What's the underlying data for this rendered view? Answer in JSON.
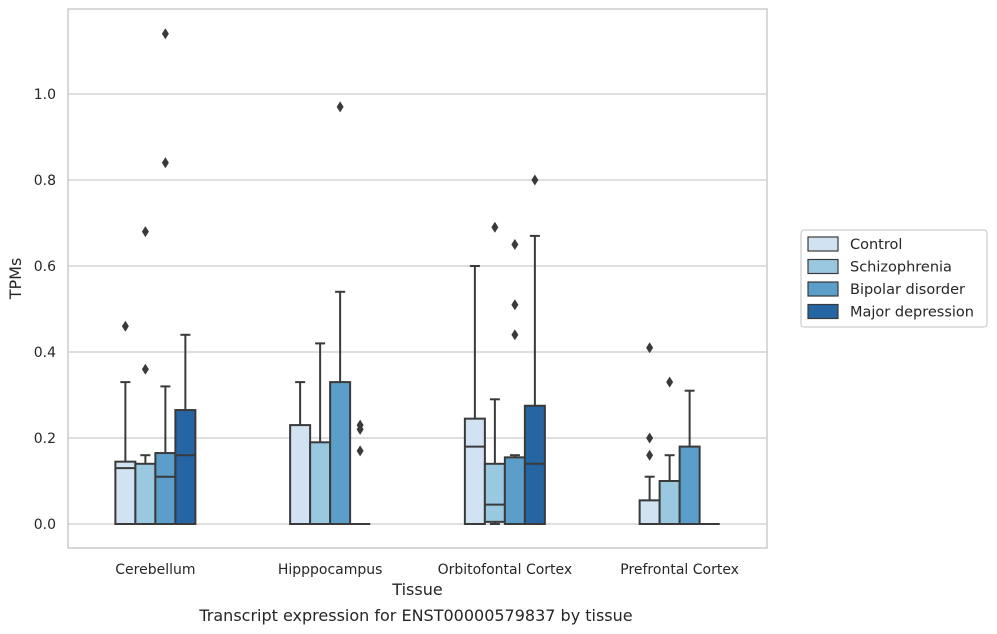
{
  "chart_data": {
    "type": "boxplot",
    "title": "",
    "xlabel": "Tissue",
    "ylabel": "TPMs",
    "caption": "Transcript expression for ENST00000579837 by tissue",
    "categories": [
      "Cerebellum",
      "Hipppocampus",
      "Orbitofontal Cortex",
      "Prefrontal Cortex"
    ],
    "ylim": [
      -0.055,
      1.2
    ],
    "yticks": [
      "0.0",
      "0.2",
      "0.4",
      "0.6",
      "0.8",
      "1.0"
    ],
    "grid": "horizontal",
    "legend_position": "right",
    "series": [
      {
        "name": "Control",
        "color": "#d1e2f2",
        "boxes": [
          {
            "q1": 0.0,
            "median": 0.13,
            "q3": 0.145,
            "whisker_low": 0.0,
            "whisker_high": 0.33,
            "outliers": [
              0.46
            ]
          },
          {
            "q1": 0.0,
            "median": 0.0,
            "q3": 0.23,
            "whisker_low": 0.0,
            "whisker_high": 0.33,
            "outliers": []
          },
          {
            "q1": 0.0,
            "median": 0.18,
            "q3": 0.245,
            "whisker_low": 0.0,
            "whisker_high": 0.6,
            "outliers": []
          },
          {
            "q1": 0.0,
            "median": 0.0,
            "q3": 0.055,
            "whisker_low": 0.0,
            "whisker_high": 0.11,
            "outliers": [
              0.16,
              0.2,
              0.41
            ]
          }
        ]
      },
      {
        "name": "Schizophrenia",
        "color": "#9ac8e0",
        "boxes": [
          {
            "q1": 0.0,
            "median": 0.0,
            "q3": 0.14,
            "whisker_low": 0.0,
            "whisker_high": 0.16,
            "outliers": [
              0.36,
              0.68
            ]
          },
          {
            "q1": 0.0,
            "median": 0.0,
            "q3": 0.19,
            "whisker_low": 0.0,
            "whisker_high": 0.42,
            "outliers": []
          },
          {
            "q1": 0.005,
            "median": 0.045,
            "q3": 0.14,
            "whisker_low": 0.0,
            "whisker_high": 0.29,
            "outliers": [
              0.69
            ]
          },
          {
            "q1": 0.0,
            "median": 0.0,
            "q3": 0.1,
            "whisker_low": 0.0,
            "whisker_high": 0.16,
            "outliers": [
              0.33
            ]
          }
        ]
      },
      {
        "name": "Bipolar disorder",
        "color": "#5a9ec9",
        "boxes": [
          {
            "q1": 0.0,
            "median": 0.11,
            "q3": 0.165,
            "whisker_low": 0.0,
            "whisker_high": 0.32,
            "outliers": [
              0.84,
              1.14
            ]
          },
          {
            "q1": 0.0,
            "median": 0.0,
            "q3": 0.33,
            "whisker_low": 0.0,
            "whisker_high": 0.54,
            "outliers": [
              0.97
            ]
          },
          {
            "q1": 0.0,
            "median": 0.0,
            "q3": 0.155,
            "whisker_low": 0.0,
            "whisker_high": 0.16,
            "outliers": [
              0.44,
              0.51,
              0.65
            ]
          },
          {
            "q1": 0.0,
            "median": 0.0,
            "q3": 0.18,
            "whisker_low": 0.0,
            "whisker_high": 0.31,
            "outliers": []
          }
        ]
      },
      {
        "name": "Major depression",
        "color": "#2565a4",
        "boxes": [
          {
            "q1": 0.0,
            "median": 0.16,
            "q3": 0.265,
            "whisker_low": 0.0,
            "whisker_high": 0.44,
            "outliers": []
          },
          {
            "q1": 0.0,
            "median": 0.0,
            "q3": 0.0,
            "whisker_low": 0.0,
            "whisker_high": 0.0,
            "outliers": [
              0.17,
              0.22,
              0.23
            ]
          },
          {
            "q1": 0.0,
            "median": 0.14,
            "q3": 0.275,
            "whisker_low": 0.0,
            "whisker_high": 0.67,
            "outliers": [
              0.8
            ]
          },
          {
            "q1": 0.0,
            "median": 0.0,
            "q3": 0.0,
            "whisker_low": 0.0,
            "whisker_high": 0.0,
            "outliers": []
          }
        ]
      }
    ]
  }
}
